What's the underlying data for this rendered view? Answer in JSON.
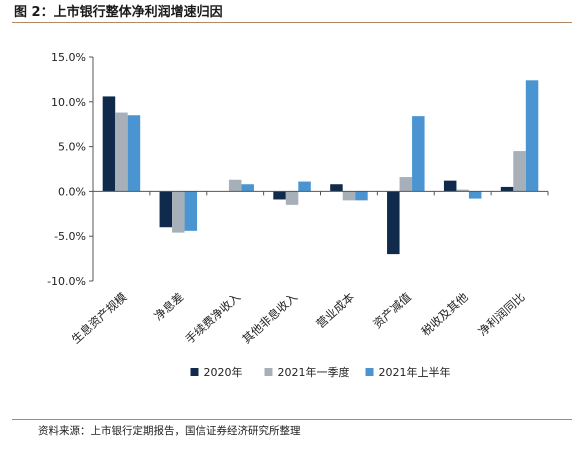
{
  "figure": {
    "title": "图 2：上市银行整体净利润增速归因",
    "source": "资料来源：上市银行定期报告，国信证券经济研究所整理"
  },
  "chart_data": {
    "type": "bar",
    "categories": [
      "生息资产规模",
      "净息差",
      "手续费净收入",
      "其他非息收入",
      "营业成本",
      "资产减值",
      "税收及其他",
      "净利润同比"
    ],
    "series": [
      {
        "name": "2020年",
        "color": "#0f2a4a",
        "values": [
          10.6,
          -4.0,
          0.0,
          -0.9,
          0.8,
          -7.0,
          1.2,
          0.5
        ]
      },
      {
        "name": "2021年一季度",
        "color": "#a7afb8",
        "values": [
          8.8,
          -4.6,
          1.3,
          -1.5,
          -1.0,
          1.6,
          0.2,
          4.5
        ]
      },
      {
        "name": "2021年上半年",
        "color": "#4a95d1",
        "values": [
          8.5,
          -4.4,
          0.8,
          1.1,
          -1.0,
          8.4,
          -0.8,
          12.4
        ]
      }
    ],
    "ylim": [
      -10,
      15
    ],
    "yticks": [
      -10,
      -5,
      0,
      5,
      10,
      15
    ],
    "ytick_labels": [
      "-10.0%",
      "-5.0%",
      "0.0%",
      "5.0%",
      "10.0%",
      "15.0%"
    ],
    "unit": "%",
    "legend_position": "bottom",
    "grid": false
  }
}
